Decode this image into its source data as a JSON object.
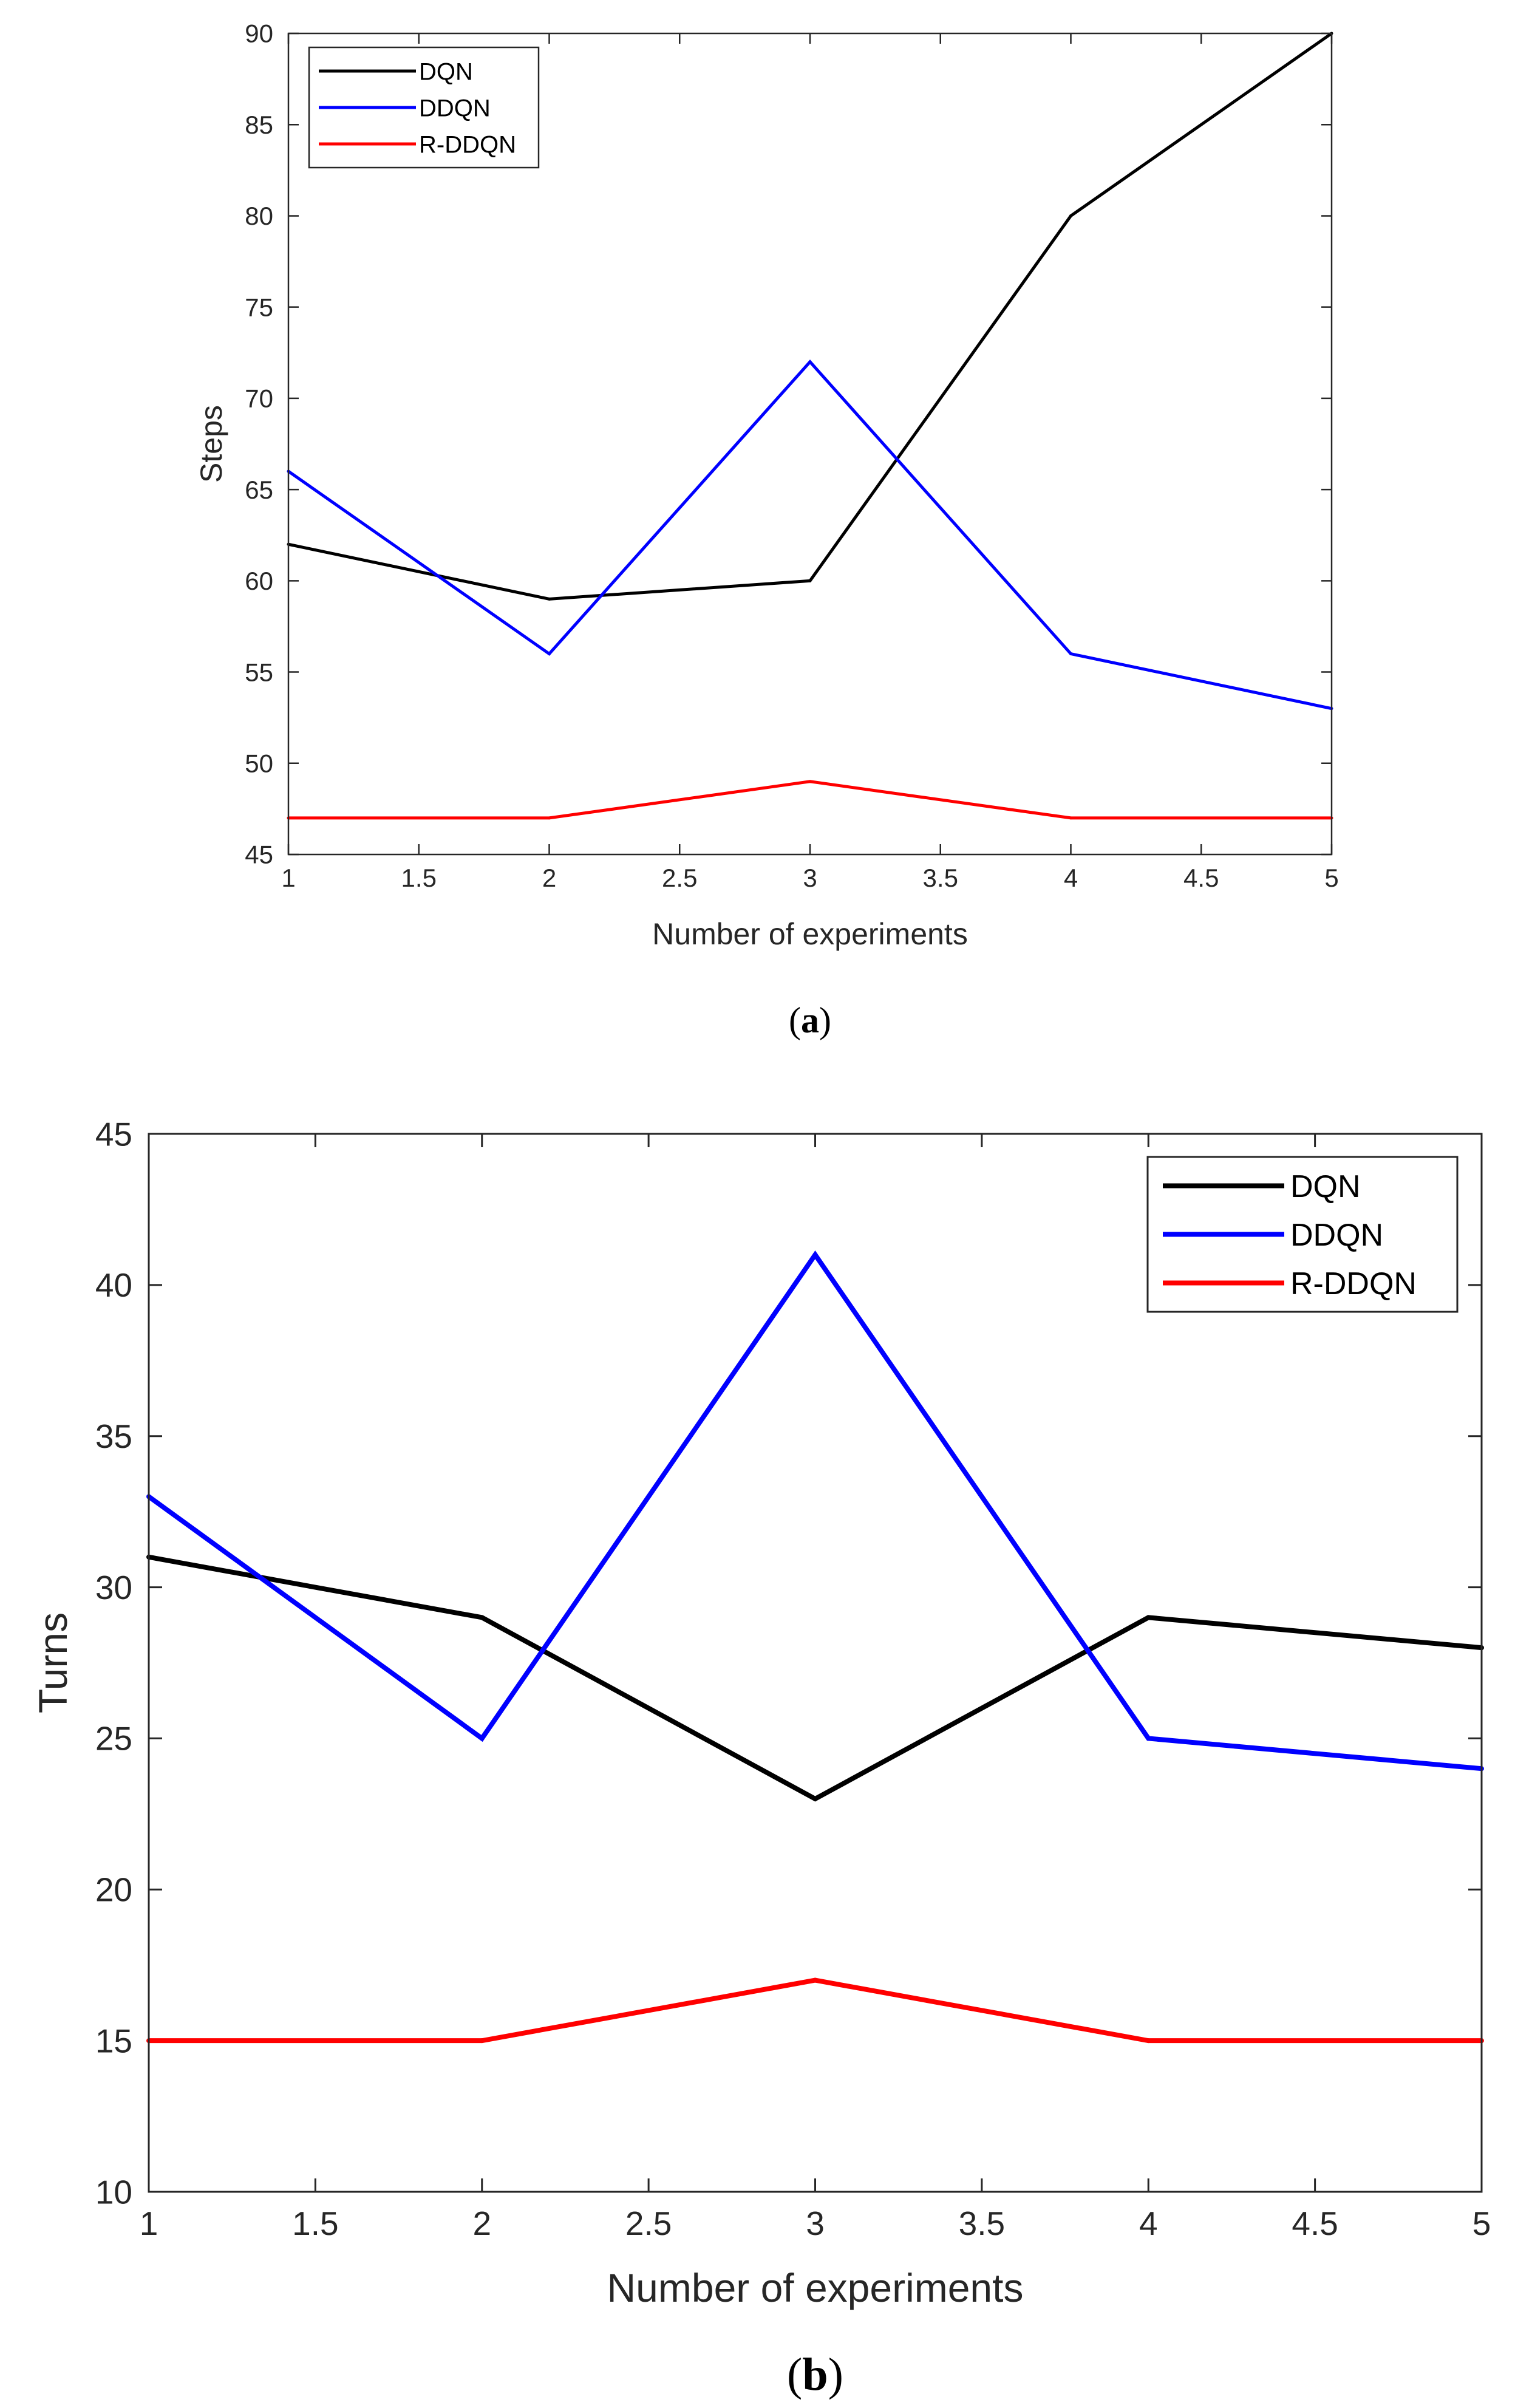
{
  "chart_data": [
    {
      "type": "line",
      "caption_letter": "a",
      "x": [
        1,
        2,
        3,
        4,
        5
      ],
      "xlim": [
        1,
        5
      ],
      "ylim": [
        45,
        90
      ],
      "xticks": [
        1,
        1.5,
        2,
        2.5,
        3,
        3.5,
        4,
        4.5,
        5
      ],
      "xtick_labels": [
        "1",
        "1.5",
        "2",
        "2.5",
        "3",
        "3.5",
        "4",
        "4.5",
        "5"
      ],
      "yticks": [
        45,
        50,
        55,
        60,
        65,
        70,
        75,
        80,
        85,
        90
      ],
      "ytick_labels": [
        "45",
        "50",
        "55",
        "60",
        "65",
        "70",
        "75",
        "80",
        "85",
        "90"
      ],
      "xlabel": "Number of experiments",
      "ylabel": "Steps",
      "legend_position": "top-left",
      "series": [
        {
          "name": "DQN",
          "color": "#000000",
          "values": [
            62,
            59,
            60,
            80,
            90
          ]
        },
        {
          "name": "DDQN",
          "color": "#0000ff",
          "values": [
            66,
            56,
            72,
            56,
            53
          ]
        },
        {
          "name": "R-DDQN",
          "color": "#ff0000",
          "values": [
            47,
            47,
            49,
            47,
            47
          ]
        }
      ]
    },
    {
      "type": "line",
      "caption_letter": "b",
      "x": [
        1,
        2,
        3,
        4,
        5
      ],
      "xlim": [
        1,
        5
      ],
      "ylim": [
        10,
        45
      ],
      "xticks": [
        1,
        1.5,
        2,
        2.5,
        3,
        3.5,
        4,
        4.5,
        5
      ],
      "xtick_labels": [
        "1",
        "1.5",
        "2",
        "2.5",
        "3",
        "3.5",
        "4",
        "4.5",
        "5"
      ],
      "yticks": [
        10,
        15,
        20,
        25,
        30,
        35,
        40,
        45
      ],
      "ytick_labels": [
        "10",
        "15",
        "20",
        "25",
        "30",
        "35",
        "40",
        "45"
      ],
      "xlabel": "Number of experiments",
      "ylabel": "Turns",
      "legend_position": "top-right",
      "series": [
        {
          "name": "DQN",
          "color": "#000000",
          "values": [
            31,
            29,
            23,
            29,
            28
          ]
        },
        {
          "name": "DDQN",
          "color": "#0000ff",
          "values": [
            33,
            25,
            41,
            25,
            24
          ]
        },
        {
          "name": "R-DDQN",
          "color": "#ff0000",
          "values": [
            15,
            15,
            17,
            15,
            15
          ]
        }
      ]
    }
  ]
}
